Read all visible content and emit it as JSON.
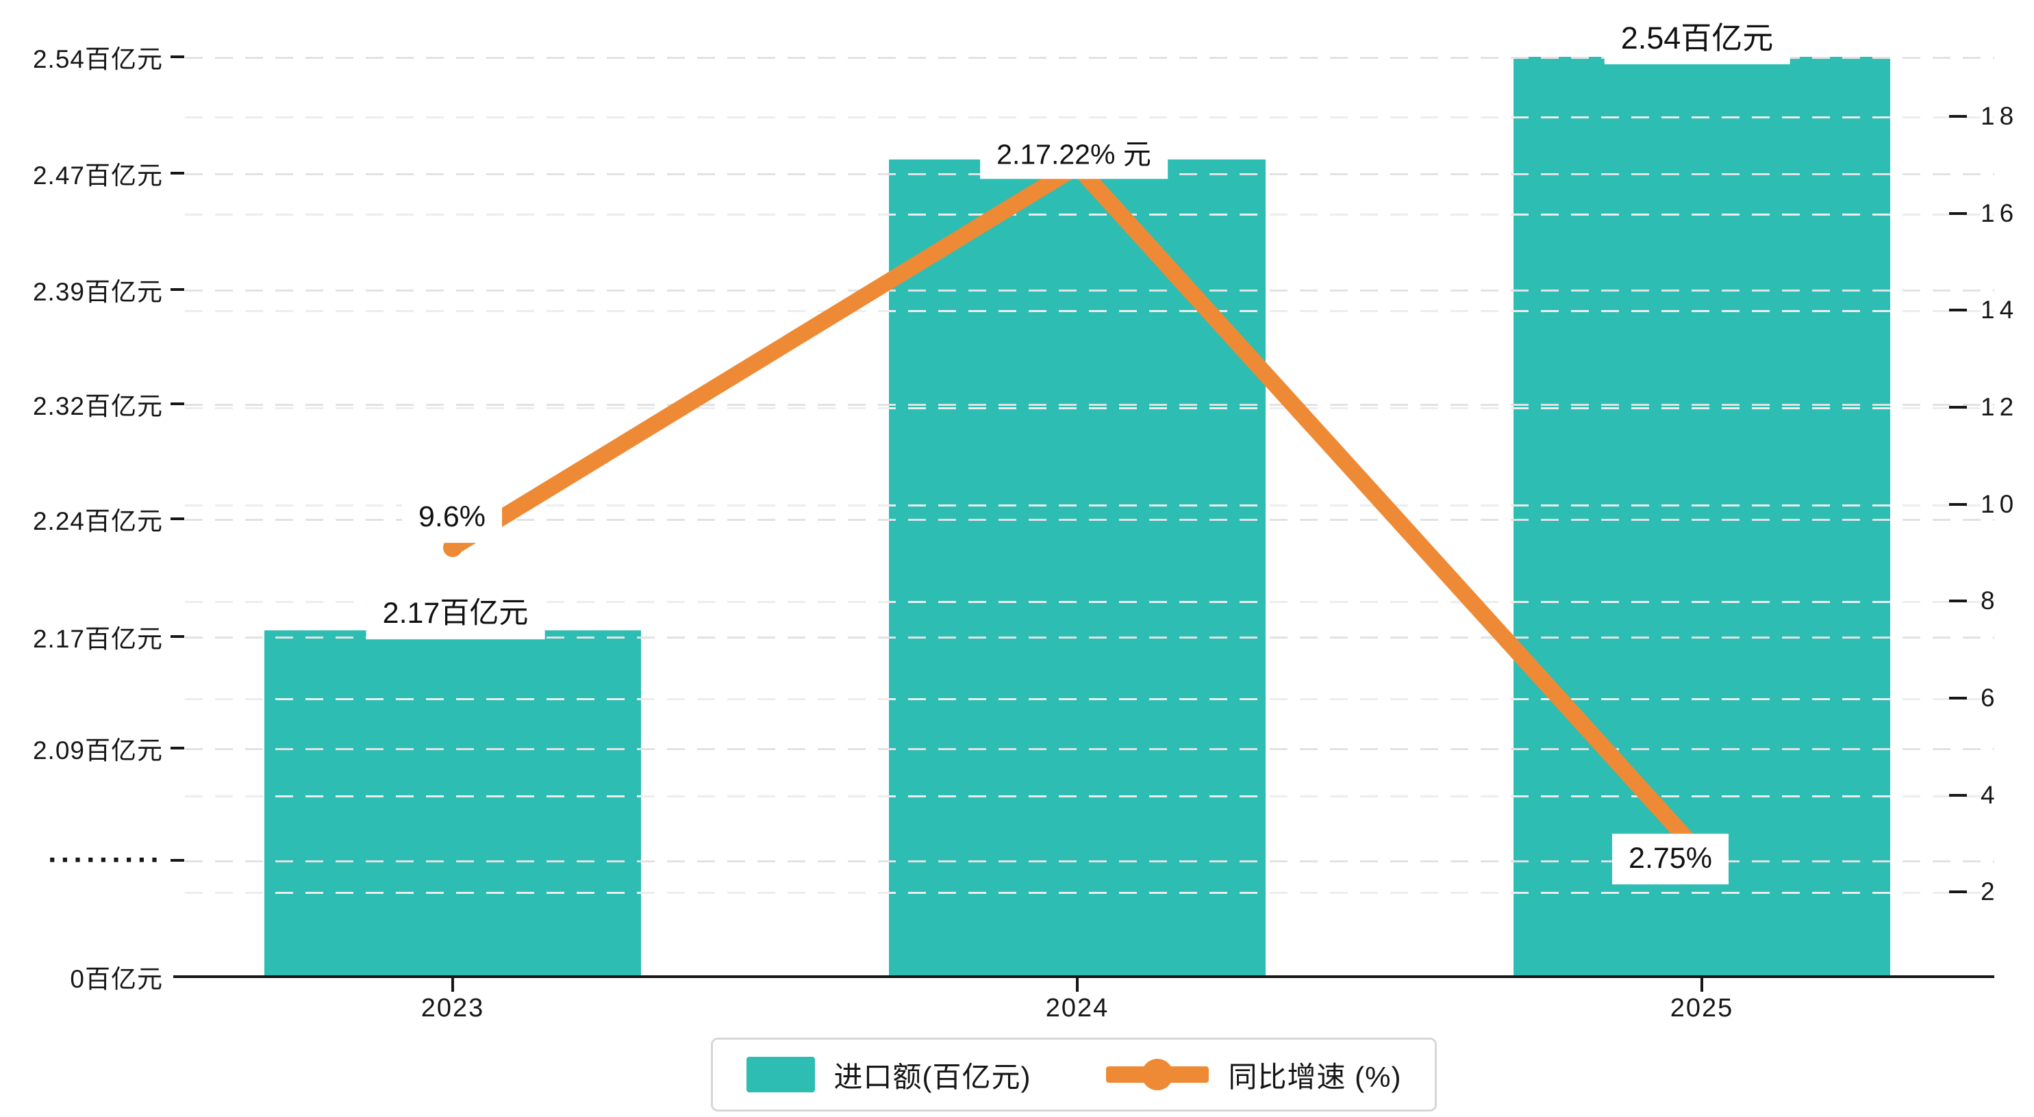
{
  "chart_data": {
    "type": "bar",
    "subtype": "bar-line-combo",
    "categories": [
      "2023",
      "2024",
      "2025"
    ],
    "series": [
      {
        "name": "进口额(百亿元)",
        "type": "bar",
        "color": "#2ebdb2",
        "values": [
          2.17,
          2.47,
          2.54
        ]
      },
      {
        "name": "同比增速 (%)",
        "type": "line",
        "color": "#ee8a35",
        "values": [
          9.6,
          17.22,
          2.75
        ]
      }
    ],
    "left_axis": {
      "unit": "百亿元",
      "tick_labels": [
        "2.54百亿元",
        "2.47百亿元",
        "2.39百亿元",
        "2.32百亿元",
        "2.24百亿元",
        "2.17百亿元",
        "2.09百亿元",
        "·········",
        "0百亿元"
      ],
      "axis_break": true,
      "range_top": 2.54
    },
    "right_axis": {
      "unit": "%",
      "tick_labels": [
        "18",
        "16",
        "14",
        "12",
        "10",
        "8",
        "6",
        "4",
        "2"
      ],
      "range": [
        0,
        18
      ]
    },
    "grid": "horizontal-dashed",
    "legend_position": "bottom-center",
    "annotations": {
      "bar_value_labels": [
        "2.17百亿元",
        "2.17.22% 元",
        "2.54百亿元"
      ],
      "line_value_labels": [
        "9.6%",
        "2.75%"
      ]
    }
  },
  "legend": {
    "items": [
      {
        "label": "进口额(百亿元)",
        "marker": "bar-swatch",
        "color": "#2ebdb2"
      },
      {
        "label": "同比增速 (%)",
        "marker": "line-dot",
        "color": "#ee8a35"
      }
    ]
  },
  "colors": {
    "bar": "#2ebdb2",
    "line": "#ee8a35",
    "axis_text": "#161616",
    "grid_major": "#e2e2e2",
    "grid_minor": "#ededed",
    "label_bg": "#ffffff",
    "legend_border": "#d7d7d7"
  }
}
